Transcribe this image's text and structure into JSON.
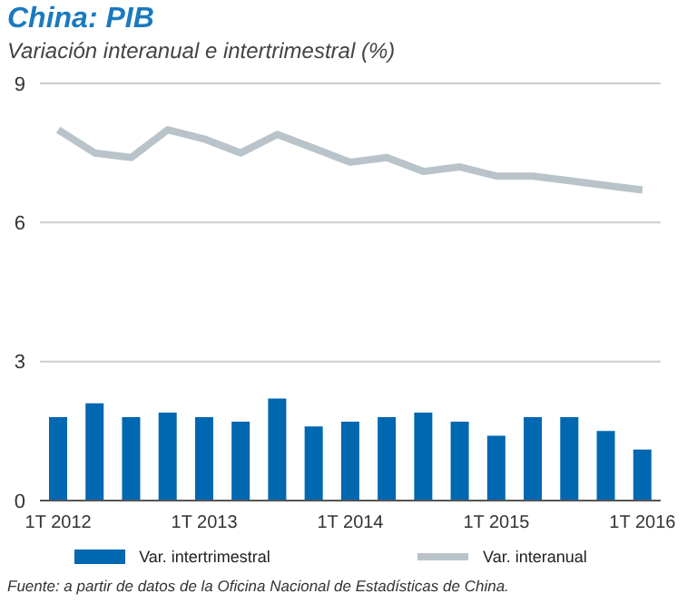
{
  "chart_data": {
    "type": "bar",
    "title": "China: PIB",
    "subtitle": "Variación interanual e intertrimestral (%)",
    "categories": [
      "1T 2012",
      null,
      null,
      null,
      "1T 2013",
      null,
      null,
      null,
      "1T 2014",
      null,
      null,
      null,
      "1T 2015",
      null,
      null,
      null,
      "1T 2016"
    ],
    "series": [
      {
        "name": "Var. intertrimestral",
        "color": "#0067b1",
        "values": [
          1.8,
          2.1,
          1.8,
          1.9,
          1.8,
          1.7,
          2.2,
          1.6,
          1.7,
          1.8,
          1.9,
          1.7,
          1.4,
          1.8,
          1.8,
          1.5,
          1.1
        ]
      },
      {
        "name": "Var. interanual",
        "type": "line",
        "color": "#b8c4c9",
        "values": [
          8.0,
          7.5,
          7.4,
          8.0,
          7.8,
          7.5,
          7.9,
          7.6,
          7.3,
          7.4,
          7.1,
          7.2,
          7.0,
          7.0,
          6.9,
          6.8,
          6.7
        ]
      }
    ],
    "ylim": [
      0,
      9
    ],
    "yticks": [
      0,
      3,
      6,
      9
    ],
    "grid": "y",
    "legend": "bottom",
    "marker": "none",
    "annotations": [
      "Fuente: a partir de datos de la Oficina Nacional de Estadísticas de China."
    ]
  }
}
